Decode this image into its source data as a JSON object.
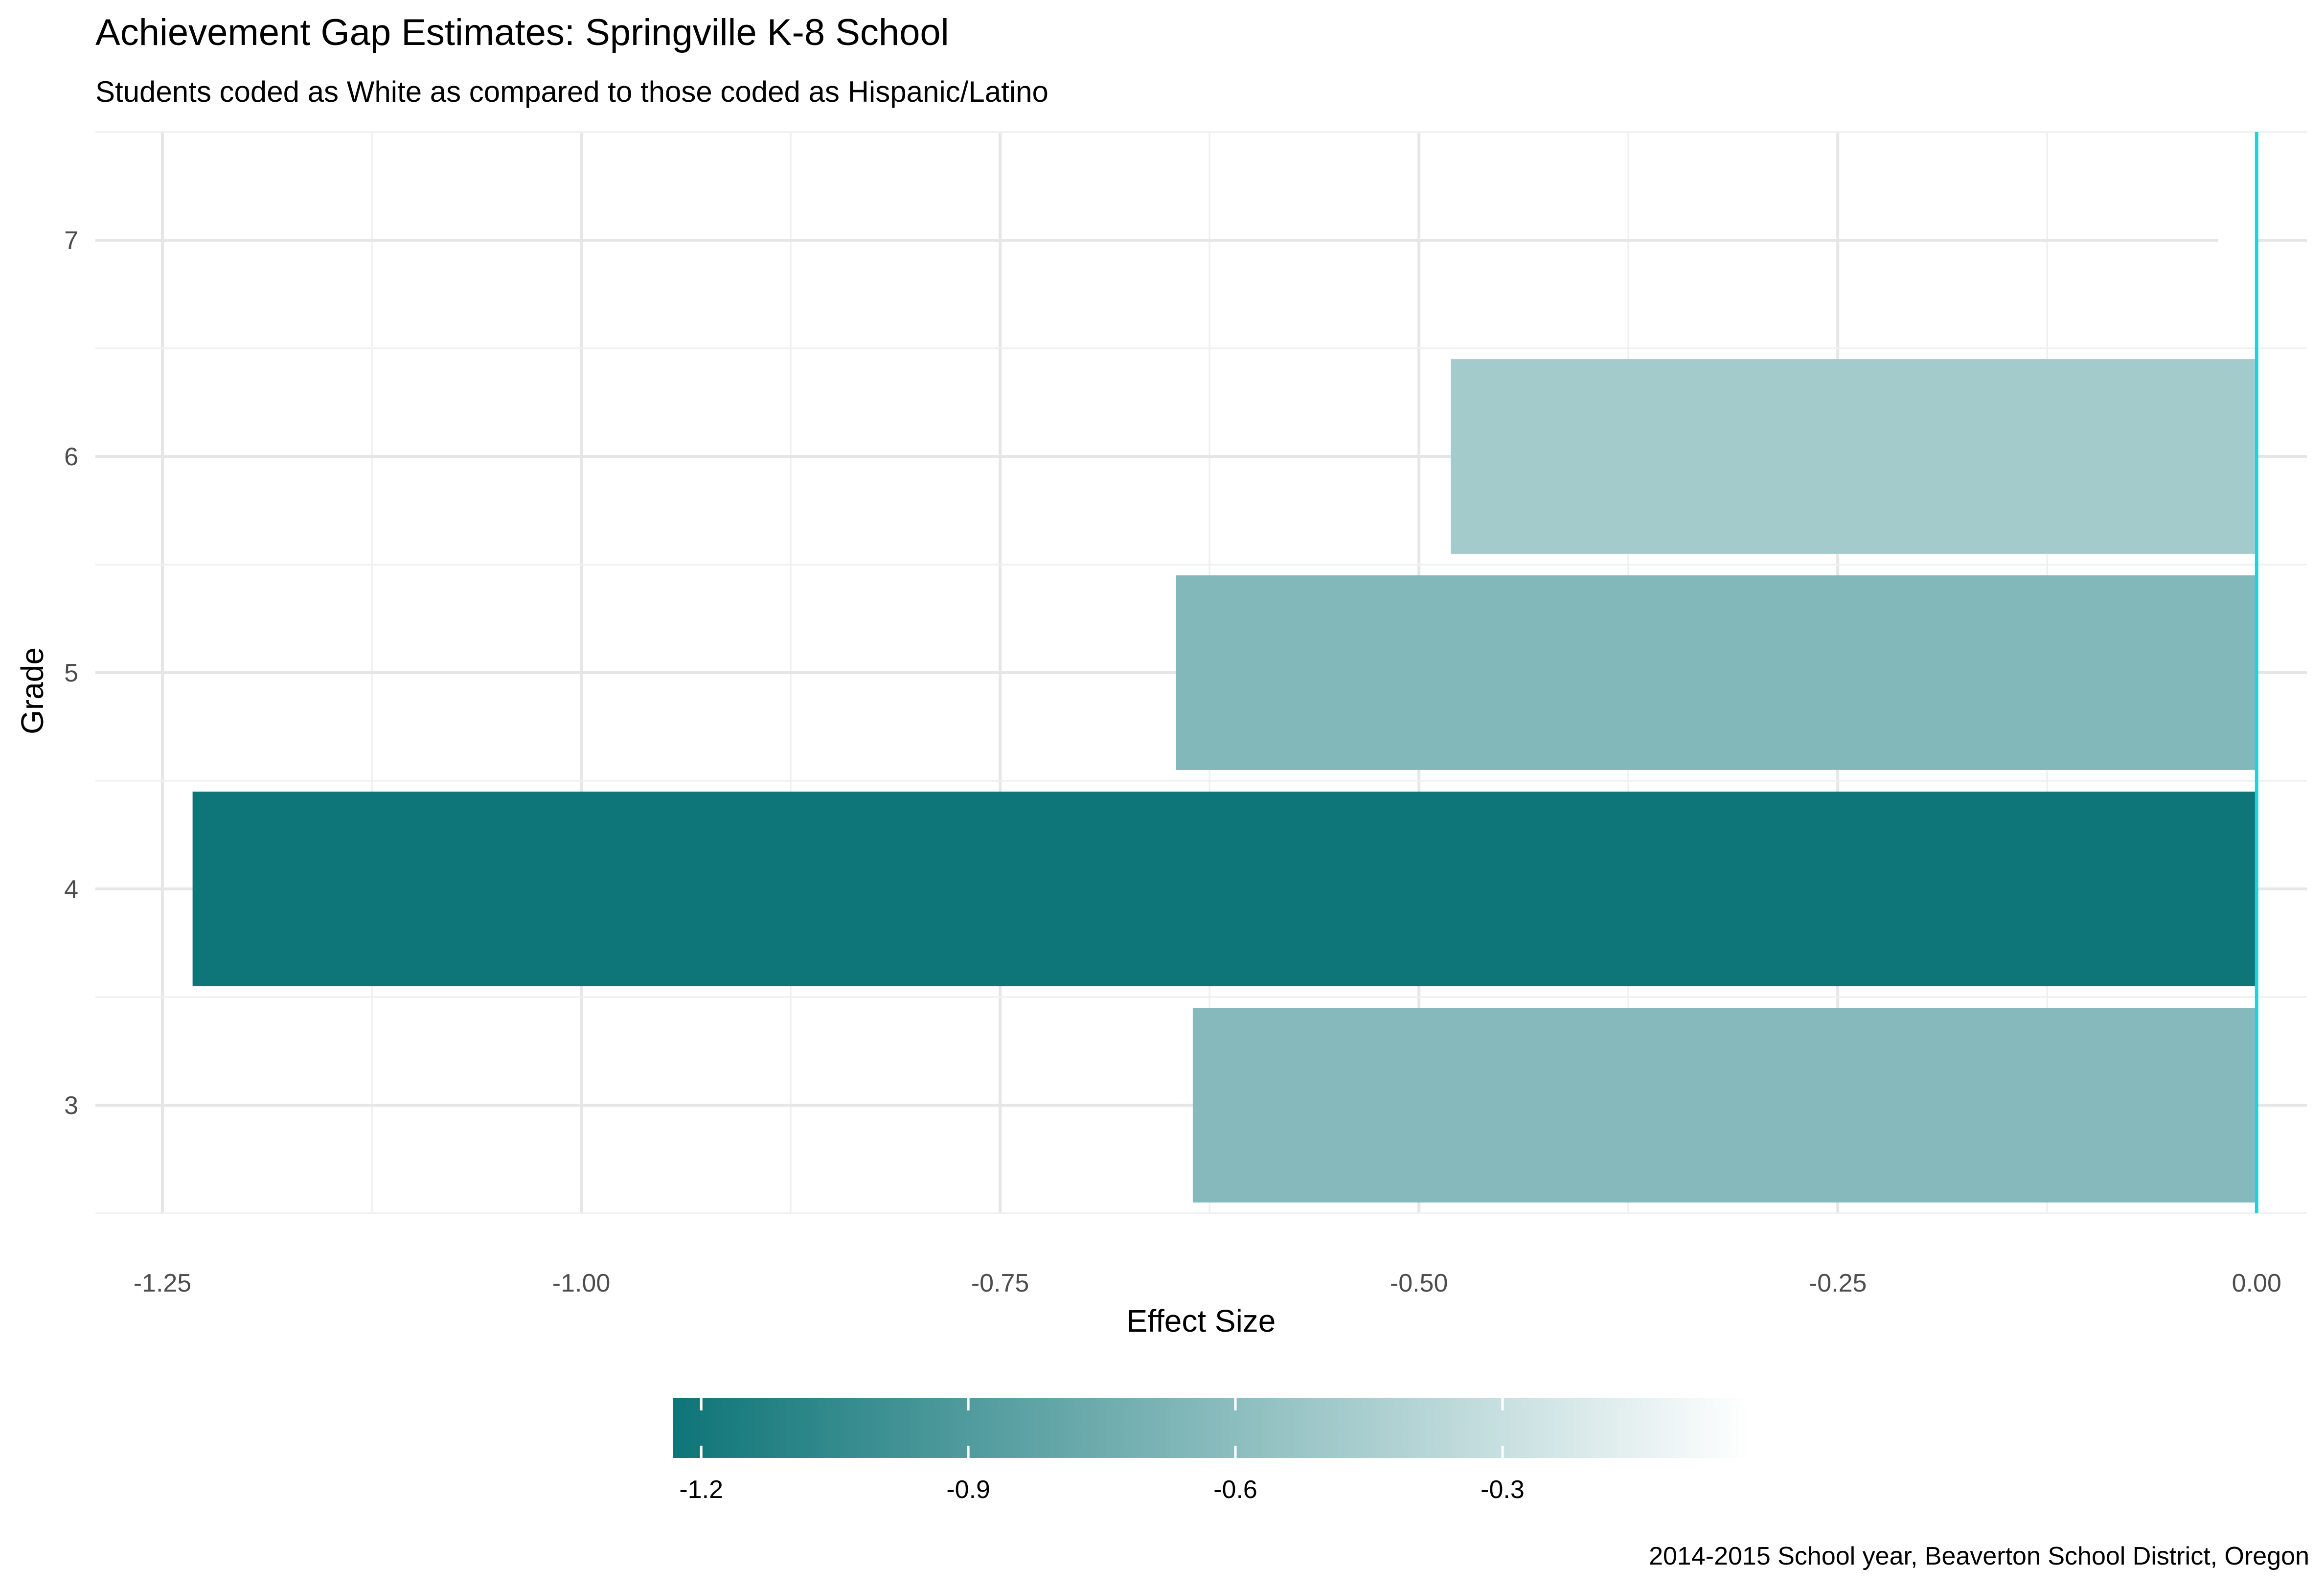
{
  "chart_data": {
    "type": "bar",
    "orientation": "horizontal",
    "title": "Achievement Gap Estimates: Springville K-8 School",
    "subtitle": "Students coded as White as compared to those coded as Hispanic/Latino",
    "xlabel": "Effect Size",
    "ylabel": "Grade",
    "caption": "2014-2015 School year, Beaverton School District, Oregon",
    "categories": [
      "3",
      "4",
      "5",
      "6",
      "7"
    ],
    "values": [
      -0.635,
      -1.232,
      -0.645,
      -0.481,
      -0.023
    ],
    "xlim": [
      -1.29,
      0.03
    ],
    "xticks": [
      -1.25,
      -1.0,
      -0.75,
      -0.5,
      -0.25,
      0.0
    ],
    "xtick_labels": [
      "-1.25",
      "-1.00",
      "-0.75",
      "-0.50",
      "-0.25",
      "0.00"
    ],
    "grid": true,
    "reference_line": {
      "x": 0,
      "color": "#22d3d3"
    },
    "colors": {
      "low": "#0e7578",
      "high": "#ffffff"
    },
    "legend": {
      "type": "colorbar",
      "placement": "bottom",
      "range": [
        -1.232,
        -0.023
      ],
      "ticks": [
        -1.2,
        -0.9,
        -0.6,
        -0.3
      ],
      "tick_labels": [
        "-1.2",
        "-0.9",
        "-0.6",
        "-0.3"
      ]
    }
  }
}
